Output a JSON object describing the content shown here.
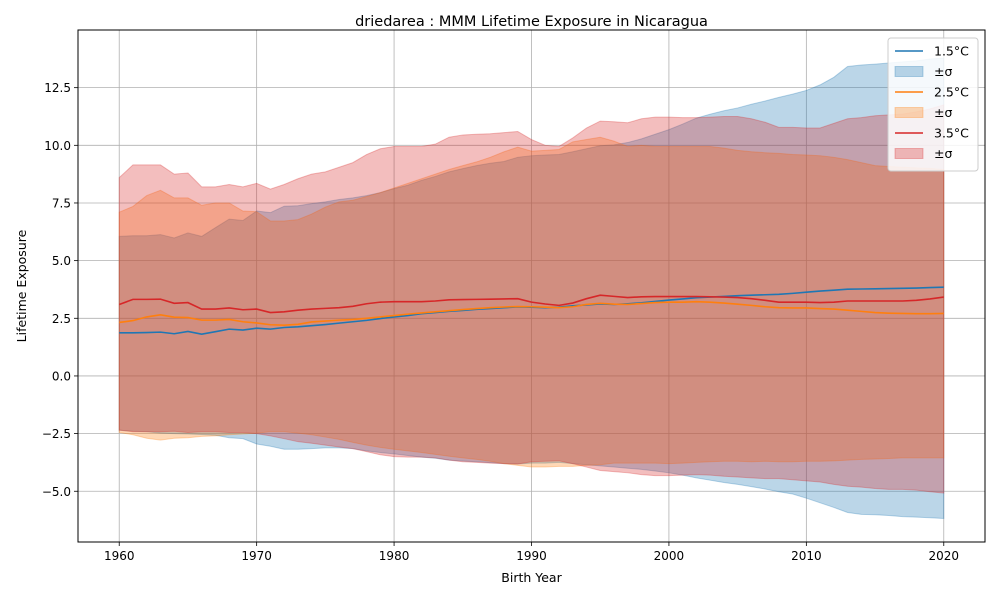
{
  "chart_data": {
    "type": "area",
    "title": "driedarea : MMM Lifetime Exposure in Nicaragua",
    "xlabel": "Birth Year",
    "ylabel": "Lifetime Exposure",
    "xlim": [
      1957,
      2023
    ],
    "ylim": [
      -7.2,
      15.0
    ],
    "xticks": [
      1960,
      1970,
      1980,
      1990,
      2000,
      2010,
      2020
    ],
    "xtick_labels": [
      "1960",
      "1970",
      "1980",
      "1990",
      "2000",
      "2010",
      "2020"
    ],
    "yticks": [
      -5,
      -2.5,
      0,
      2.5,
      5,
      7.5,
      10,
      12.5
    ],
    "ytick_labels": [
      "−5.0",
      "−2.5",
      "0.0",
      "2.5",
      "5.0",
      "7.5",
      "10.0",
      "12.5"
    ],
    "grid": true,
    "legend_position": "top-right",
    "x": [
      1960,
      1961,
      1962,
      1963,
      1964,
      1965,
      1966,
      1967,
      1968,
      1969,
      1970,
      1971,
      1972,
      1973,
      1974,
      1975,
      1976,
      1977,
      1978,
      1979,
      1980,
      1981,
      1982,
      1983,
      1984,
      1985,
      1986,
      1987,
      1988,
      1989,
      1990,
      1991,
      1992,
      1993,
      1994,
      1995,
      1996,
      1997,
      1998,
      1999,
      2000,
      2001,
      2002,
      2003,
      2004,
      2005,
      2006,
      2007,
      2008,
      2009,
      2010,
      2011,
      2012,
      2013,
      2014,
      2015,
      2016,
      2017,
      2018,
      2019,
      2020
    ],
    "series": [
      {
        "name": "1.5°C",
        "band_label": "±σ",
        "color": "#1f77b4",
        "mean": [
          1.87,
          1.87,
          1.88,
          1.9,
          1.83,
          1.93,
          1.81,
          1.92,
          2.03,
          1.99,
          2.07,
          2.03,
          2.1,
          2.13,
          2.18,
          2.23,
          2.29,
          2.35,
          2.41,
          2.49,
          2.56,
          2.62,
          2.7,
          2.75,
          2.8,
          2.84,
          2.89,
          2.92,
          2.96,
          2.99,
          2.98,
          2.96,
          2.98,
          3.04,
          3.08,
          3.12,
          3.1,
          3.13,
          3.17,
          3.23,
          3.29,
          3.34,
          3.39,
          3.42,
          3.45,
          3.48,
          3.5,
          3.52,
          3.54,
          3.58,
          3.63,
          3.68,
          3.72,
          3.76,
          3.77,
          3.78,
          3.79,
          3.8,
          3.81,
          3.83,
          3.85
        ],
        "upper": [
          6.05,
          6.08,
          6.08,
          6.13,
          5.98,
          6.2,
          6.05,
          6.43,
          6.8,
          6.74,
          7.15,
          7.08,
          7.36,
          7.38,
          7.47,
          7.55,
          7.65,
          7.72,
          7.82,
          7.95,
          8.12,
          8.27,
          8.48,
          8.65,
          8.85,
          8.99,
          9.12,
          9.22,
          9.3,
          9.48,
          9.55,
          9.58,
          9.6,
          9.72,
          9.85,
          9.98,
          10.02,
          10.12,
          10.28,
          10.48,
          10.68,
          10.92,
          11.18,
          11.35,
          11.5,
          11.62,
          11.78,
          11.92,
          12.08,
          12.22,
          12.38,
          12.62,
          12.95,
          13.42,
          13.48,
          13.52,
          13.57,
          13.62,
          13.66,
          13.74,
          13.78
        ],
        "lower": [
          -2.35,
          -2.4,
          -2.42,
          -2.48,
          -2.5,
          -2.52,
          -2.54,
          -2.57,
          -2.68,
          -2.72,
          -2.95,
          -3.05,
          -3.18,
          -3.18,
          -3.15,
          -3.12,
          -3.12,
          -3.15,
          -3.25,
          -3.32,
          -3.38,
          -3.45,
          -3.52,
          -3.57,
          -3.65,
          -3.69,
          -3.72,
          -3.76,
          -3.8,
          -3.82,
          -3.78,
          -3.78,
          -3.75,
          -3.8,
          -3.85,
          -3.9,
          -3.95,
          -4.0,
          -4.05,
          -4.12,
          -4.2,
          -4.3,
          -4.42,
          -4.52,
          -4.62,
          -4.7,
          -4.8,
          -4.9,
          -5.02,
          -5.12,
          -5.3,
          -5.5,
          -5.7,
          -5.92,
          -6.0,
          -6.02,
          -6.05,
          -6.1,
          -6.12,
          -6.15,
          -6.18
        ]
      },
      {
        "name": "2.5°C",
        "band_label": "±σ",
        "color": "#ff7f0e",
        "mean": [
          2.32,
          2.4,
          2.56,
          2.65,
          2.55,
          2.53,
          2.42,
          2.42,
          2.45,
          2.35,
          2.3,
          2.22,
          2.2,
          2.24,
          2.34,
          2.38,
          2.42,
          2.45,
          2.5,
          2.56,
          2.62,
          2.68,
          2.73,
          2.78,
          2.83,
          2.88,
          2.92,
          2.96,
          2.99,
          3.01,
          3.0,
          2.98,
          2.96,
          3.0,
          3.1,
          3.15,
          3.11,
          3.1,
          3.14,
          3.18,
          3.2,
          3.2,
          3.22,
          3.2,
          3.16,
          3.11,
          3.06,
          3.0,
          2.96,
          2.95,
          2.95,
          2.92,
          2.9,
          2.85,
          2.8,
          2.75,
          2.72,
          2.71,
          2.7,
          2.7,
          2.71
        ],
        "upper": [
          7.1,
          7.35,
          7.82,
          8.05,
          7.72,
          7.72,
          7.4,
          7.5,
          7.5,
          7.15,
          7.12,
          6.72,
          6.72,
          6.78,
          7.02,
          7.32,
          7.55,
          7.62,
          7.78,
          7.95,
          8.15,
          8.35,
          8.55,
          8.75,
          8.95,
          9.12,
          9.28,
          9.48,
          9.72,
          9.92,
          9.75,
          9.78,
          9.82,
          10.15,
          10.25,
          10.35,
          10.18,
          9.95,
          10.0,
          9.95,
          9.95,
          9.95,
          9.95,
          9.95,
          9.88,
          9.78,
          9.72,
          9.68,
          9.65,
          9.6,
          9.58,
          9.55,
          9.48,
          9.38,
          9.25,
          9.12,
          9.08,
          9.05,
          9.02,
          9.0,
          8.95
        ],
        "lower": [
          -2.45,
          -2.55,
          -2.7,
          -2.78,
          -2.7,
          -2.68,
          -2.62,
          -2.6,
          -2.55,
          -2.52,
          -2.48,
          -2.42,
          -2.42,
          -2.48,
          -2.55,
          -2.65,
          -2.75,
          -2.88,
          -3.0,
          -3.1,
          -3.18,
          -3.25,
          -3.32,
          -3.4,
          -3.48,
          -3.55,
          -3.62,
          -3.7,
          -3.8,
          -3.88,
          -3.95,
          -3.95,
          -3.92,
          -3.92,
          -3.88,
          -3.85,
          -3.78,
          -3.78,
          -3.78,
          -3.78,
          -3.8,
          -3.78,
          -3.75,
          -3.72,
          -3.7,
          -3.7,
          -3.72,
          -3.7,
          -3.72,
          -3.72,
          -3.7,
          -3.7,
          -3.68,
          -3.65,
          -3.62,
          -3.6,
          -3.58,
          -3.55,
          -3.55,
          -3.55,
          -3.55
        ]
      },
      {
        "name": "3.5°C",
        "band_label": "±σ",
        "color": "#d62728",
        "mean": [
          3.1,
          3.32,
          3.32,
          3.33,
          3.15,
          3.18,
          2.9,
          2.9,
          2.95,
          2.87,
          2.9,
          2.75,
          2.78,
          2.85,
          2.9,
          2.93,
          2.96,
          3.02,
          3.13,
          3.2,
          3.22,
          3.22,
          3.22,
          3.25,
          3.3,
          3.31,
          3.32,
          3.33,
          3.34,
          3.35,
          3.2,
          3.12,
          3.06,
          3.16,
          3.35,
          3.5,
          3.45,
          3.4,
          3.43,
          3.44,
          3.44,
          3.44,
          3.44,
          3.43,
          3.42,
          3.4,
          3.35,
          3.28,
          3.2,
          3.2,
          3.2,
          3.18,
          3.2,
          3.25,
          3.25,
          3.25,
          3.25,
          3.25,
          3.28,
          3.34,
          3.42
        ],
        "upper": [
          8.6,
          9.15,
          9.15,
          9.15,
          8.75,
          8.8,
          8.2,
          8.2,
          8.3,
          8.2,
          8.35,
          8.1,
          8.3,
          8.55,
          8.75,
          8.85,
          9.05,
          9.25,
          9.6,
          9.85,
          9.95,
          9.95,
          9.95,
          10.05,
          10.35,
          10.45,
          10.48,
          10.5,
          10.55,
          10.6,
          10.25,
          10.0,
          9.95,
          10.32,
          10.75,
          11.05,
          11.02,
          10.98,
          11.15,
          11.22,
          11.22,
          11.2,
          11.2,
          11.22,
          11.25,
          11.25,
          11.15,
          11.0,
          10.78,
          10.78,
          10.75,
          10.75,
          10.95,
          11.15,
          11.2,
          11.28,
          11.32,
          11.35,
          11.45,
          11.58,
          11.75
        ],
        "lower": [
          -2.35,
          -2.42,
          -2.42,
          -2.42,
          -2.4,
          -2.45,
          -2.42,
          -2.42,
          -2.45,
          -2.45,
          -2.5,
          -2.6,
          -2.72,
          -2.85,
          -2.92,
          -3.0,
          -3.08,
          -3.15,
          -3.28,
          -3.42,
          -3.5,
          -3.52,
          -3.52,
          -3.55,
          -3.65,
          -3.72,
          -3.75,
          -3.78,
          -3.8,
          -3.82,
          -3.72,
          -3.7,
          -3.68,
          -3.8,
          -3.95,
          -4.1,
          -4.15,
          -4.2,
          -4.28,
          -4.32,
          -4.32,
          -4.3,
          -4.28,
          -4.3,
          -4.35,
          -4.38,
          -4.42,
          -4.45,
          -4.45,
          -4.5,
          -4.55,
          -4.6,
          -4.7,
          -4.78,
          -4.82,
          -4.88,
          -4.92,
          -4.92,
          -4.95,
          -5.02,
          -5.08
        ]
      }
    ]
  }
}
